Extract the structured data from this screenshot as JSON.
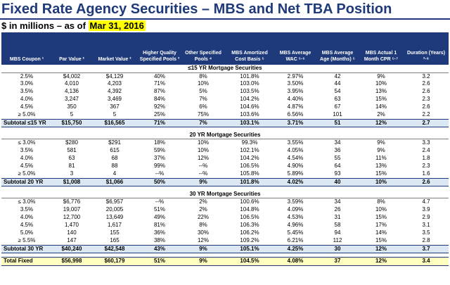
{
  "title": "Fixed Rate Agency Securities – MBS and Net TBA Position",
  "subtitle": "$ in millions – as of",
  "as_of_date": "Mar 31, 2016",
  "colors": {
    "header_bg": "#1f3a7a",
    "subtotal_bg": "#dbe8f4",
    "total_bg": "#ffffc0",
    "highlight": "#ffff00"
  },
  "columns": [
    "MBS Coupon ¹",
    "Par Value ²",
    "Market Value ²",
    "Higher Quality Specified Pools ³",
    "Other Specified Pools ⁴",
    "MBS Amortized Cost Basis ⁵",
    "MBS Average WAC ⁵·⁶",
    "MBS Average Age (Months) ⁵",
    "MBS Actual 1 Month CPR ⁵·⁷",
    "Duration (Years) ²·⁸"
  ],
  "sections": [
    {
      "name": "≤15 YR Mortgage Securities",
      "rows": [
        [
          "2.5%",
          "$4,002",
          "$4,129",
          "40%",
          "8%",
          "101.8%",
          "2.97%",
          "42",
          "9%",
          "3.2"
        ],
        [
          "3.0%",
          "4,010",
          "4,203",
          "71%",
          "10%",
          "103.0%",
          "3.50%",
          "44",
          "10%",
          "2.6"
        ],
        [
          "3.5%",
          "4,136",
          "4,392",
          "87%",
          "5%",
          "103.5%",
          "3.95%",
          "54",
          "13%",
          "2.6"
        ],
        [
          "4.0%",
          "3,247",
          "3,469",
          "84%",
          "7%",
          "104.2%",
          "4.40%",
          "63",
          "15%",
          "2.3"
        ],
        [
          "4.5%",
          "350",
          "367",
          "92%",
          "6%",
          "104.6%",
          "4.87%",
          "67",
          "14%",
          "2.6"
        ],
        [
          "≥ 5.0%",
          "5",
          "5",
          "25%",
          "75%",
          "103.6%",
          "6.56%",
          "101",
          "2%",
          "2.2"
        ]
      ],
      "subtotal": [
        "Subtotal ≤15 YR",
        "$15,750",
        "$16,565",
        "71%",
        "7%",
        "103.1%",
        "3.71%",
        "51",
        "12%",
        "2.7"
      ]
    },
    {
      "name": "20 YR Mortgage Securities",
      "rows": [
        [
          "≤ 3.0%",
          "$280",
          "$291",
          "18%",
          "10%",
          "99.3%",
          "3.55%",
          "34",
          "9%",
          "3.3"
        ],
        [
          "3.5%",
          "581",
          "615",
          "59%",
          "10%",
          "102.1%",
          "4.05%",
          "36",
          "9%",
          "2.4"
        ],
        [
          "4.0%",
          "63",
          "68",
          "37%",
          "12%",
          "104.2%",
          "4.54%",
          "55",
          "11%",
          "1.8"
        ],
        [
          "4.5%",
          "81",
          "88",
          "99%",
          "--%",
          "106.5%",
          "4.90%",
          "64",
          "13%",
          "2.3"
        ],
        [
          "≥ 5.0%",
          "3",
          "4",
          "--%",
          "--%",
          "105.8%",
          "5.89%",
          "93",
          "15%",
          "1.6"
        ]
      ],
      "subtotal": [
        "Subtotal 20 YR",
        "$1,008",
        "$1,066",
        "50%",
        "9%",
        "101.8%",
        "4.02%",
        "40",
        "10%",
        "2.6"
      ]
    },
    {
      "name": "30 YR Mortgage Securities",
      "rows": [
        [
          "≤ 3.0%",
          "$6,776",
          "$6,957",
          "--%",
          "2%",
          "100.6%",
          "3.59%",
          "34",
          "8%",
          "4.7"
        ],
        [
          "3.5%",
          "19,007",
          "20,005",
          "51%",
          "2%",
          "104.8%",
          "4.09%",
          "26",
          "10%",
          "3.9"
        ],
        [
          "4.0%",
          "12,700",
          "13,649",
          "49%",
          "22%",
          "106.5%",
          "4.53%",
          "31",
          "15%",
          "2.9"
        ],
        [
          "4.5%",
          "1,470",
          "1,617",
          "81%",
          "8%",
          "106.3%",
          "4.96%",
          "58",
          "17%",
          "3.1"
        ],
        [
          "5.0%",
          "140",
          "155",
          "36%",
          "30%",
          "106.2%",
          "5.45%",
          "94",
          "14%",
          "3.5"
        ],
        [
          "≥ 5.5%",
          "147",
          "165",
          "38%",
          "12%",
          "109.2%",
          "6.21%",
          "112",
          "15%",
          "2.8"
        ]
      ],
      "subtotal": [
        "Subtotal 30 YR",
        "$40,240",
        "$42,548",
        "43%",
        "9%",
        "105.1%",
        "4.25%",
        "30",
        "12%",
        "3.7"
      ]
    }
  ],
  "total": [
    "Total Fixed",
    "$56,998",
    "$60,179",
    "51%",
    "9%",
    "104.5%",
    "4.08%",
    "37",
    "12%",
    "3.4"
  ]
}
